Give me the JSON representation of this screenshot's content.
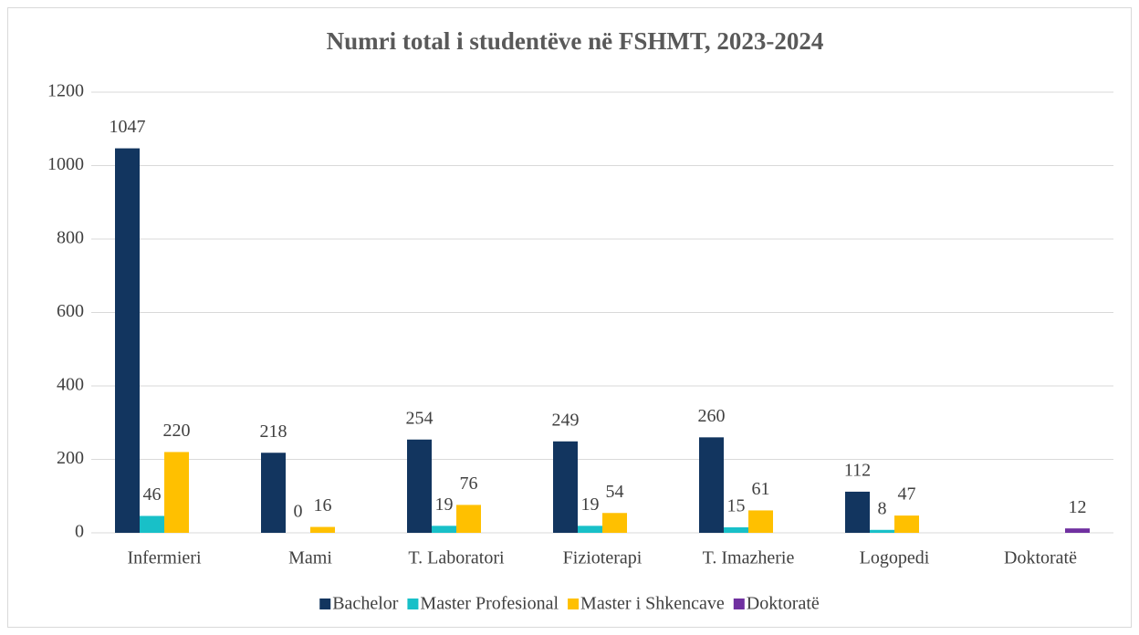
{
  "chart_data": {
    "type": "bar",
    "title": "Numri total i studentëve në FSHMT, 2023-2024",
    "categories": [
      "Infermieri",
      "Mami",
      "T. Laboratori",
      "Fizioterapi",
      "T. Imazherie",
      "Logopedi",
      "Doktoratë"
    ],
    "series": [
      {
        "name": "Bachelor",
        "color": "#12355f",
        "values": [
          1047,
          218,
          254,
          249,
          260,
          112,
          null
        ]
      },
      {
        "name": "Master Profesional",
        "color": "#18c0c8",
        "values": [
          46,
          0,
          19,
          19,
          15,
          8,
          null
        ]
      },
      {
        "name": "Master i Shkencave",
        "color": "#ffc000",
        "values": [
          220,
          16,
          76,
          54,
          61,
          47,
          null
        ]
      },
      {
        "name": "Doktoratë",
        "color": "#7030a0",
        "values": [
          null,
          null,
          null,
          null,
          null,
          null,
          12
        ]
      }
    ],
    "ylim": [
      0,
      1200
    ],
    "yticks": [
      0,
      200,
      400,
      600,
      800,
      1000,
      1200
    ],
    "grid": true,
    "legend": "bottom"
  }
}
